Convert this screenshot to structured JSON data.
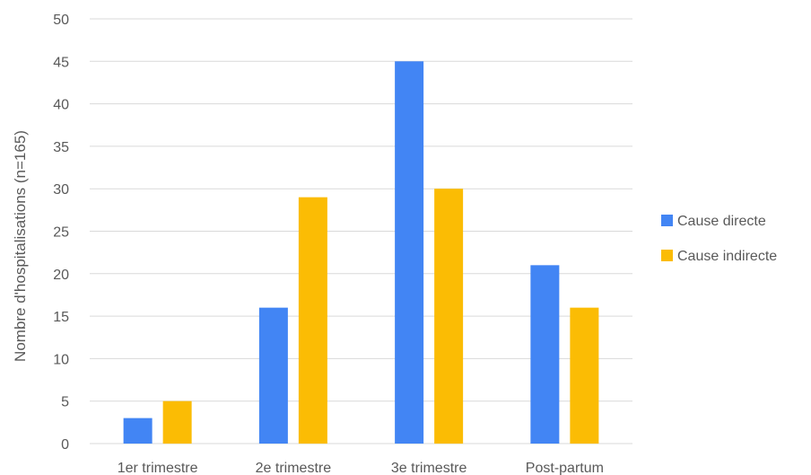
{
  "chart_data": {
    "type": "bar",
    "title": "",
    "xlabel": "",
    "ylabel": "Nombre d'hospitalisations (n=165)",
    "categories": [
      "1er trimestre",
      "2e trimestre",
      "3e trimestre",
      "Post-partum"
    ],
    "series": [
      {
        "name": "Cause directe",
        "color": "#4285F4",
        "values": [
          3,
          16,
          45,
          21
        ]
      },
      {
        "name": "Cause indirecte",
        "color": "#FBBC04",
        "values": [
          5,
          29,
          30,
          16
        ]
      }
    ],
    "ylim": [
      0,
      50
    ],
    "yticks": [
      "0",
      "5",
      "10",
      "15",
      "20",
      "25",
      "30",
      "35",
      "40",
      "45",
      "50"
    ],
    "grid": true,
    "legend_position": "right"
  }
}
